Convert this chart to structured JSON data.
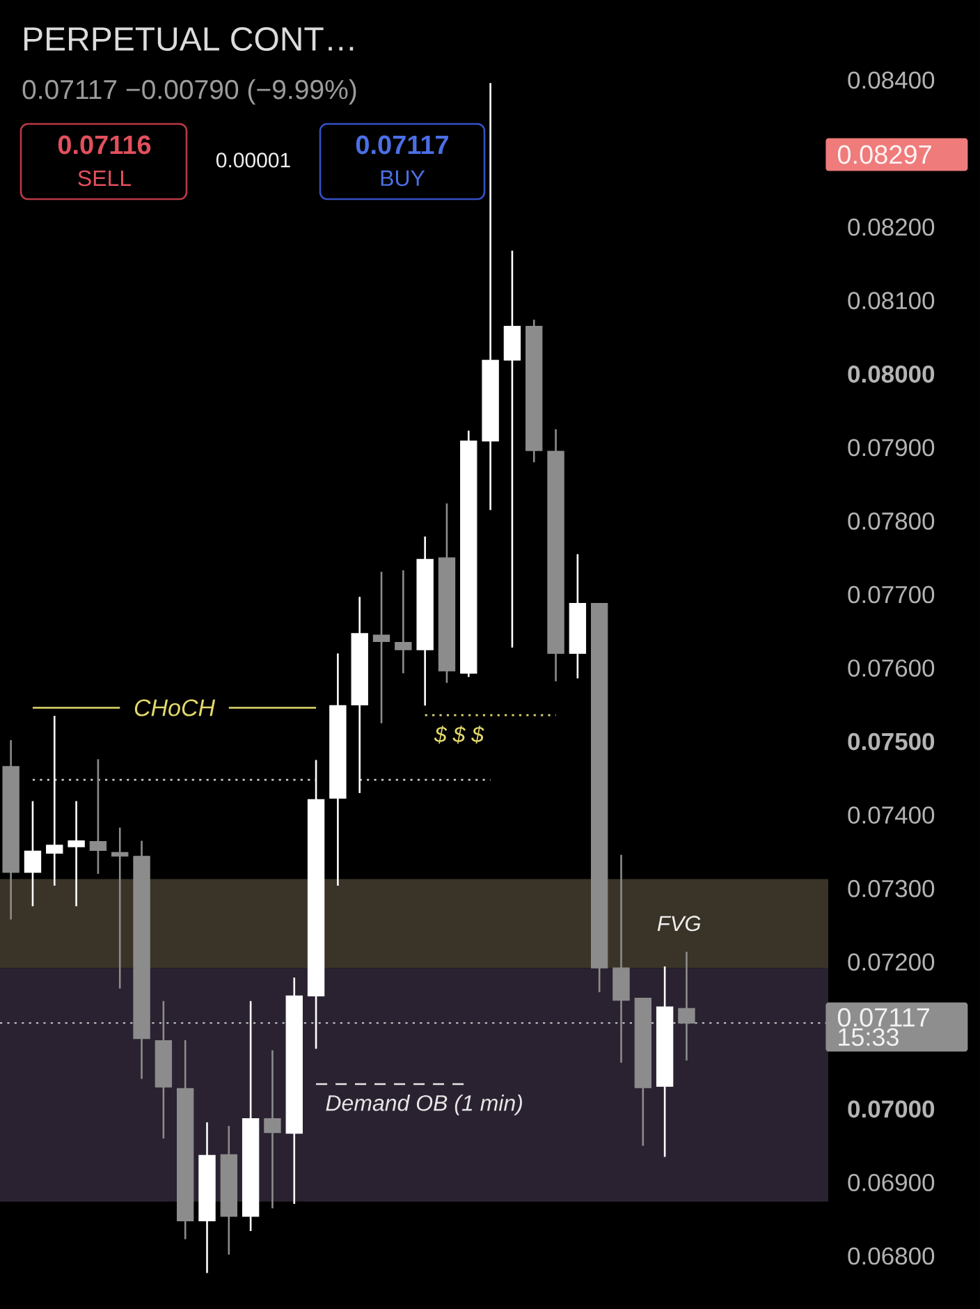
{
  "chart_data": {
    "type": "candlestick",
    "title": "PERPETUAL CONT…",
    "subtitle": "0.07117 −0.00790 (−9.99%)",
    "categories": [
      null,
      null,
      null,
      null,
      null,
      null,
      null,
      null,
      null,
      null,
      null,
      null,
      null,
      null,
      null,
      null,
      null,
      null,
      null,
      null,
      null,
      null,
      null,
      null,
      null,
      null,
      null,
      null,
      null,
      null,
      null,
      null,
      null,
      null,
      null,
      null,
      null,
      null
    ],
    "ohlc": [
      [
        0.07466,
        0.07502,
        0.07258,
        0.07322
      ],
      [
        0.07322,
        0.07419,
        0.07276,
        0.07351
      ],
      [
        0.07348,
        0.07535,
        0.07304,
        0.07359
      ],
      [
        0.07357,
        0.07419,
        0.07276,
        0.07365
      ],
      [
        0.07364,
        0.07476,
        0.0732,
        0.07352
      ],
      [
        0.07349,
        0.07383,
        0.07164,
        0.07344
      ],
      [
        0.07344,
        0.07365,
        0.07041,
        0.07096
      ],
      [
        0.07093,
        0.07147,
        0.0696,
        0.0703
      ],
      [
        0.07028,
        0.07094,
        0.06823,
        0.06848
      ],
      [
        0.06848,
        0.06982,
        0.06777,
        0.06937
      ],
      [
        0.06938,
        0.06977,
        0.06802,
        0.06854
      ],
      [
        0.06854,
        0.07147,
        0.06834,
        0.06987
      ],
      [
        0.06987,
        0.0708,
        0.06865,
        0.06968
      ],
      [
        0.06967,
        0.07179,
        0.06871,
        0.07154
      ],
      [
        0.07154,
        0.07475,
        0.07082,
        0.07421
      ],
      [
        0.07423,
        0.0762,
        0.07304,
        0.07549
      ],
      [
        0.0755,
        0.07697,
        0.0743,
        0.07647
      ],
      [
        0.07645,
        0.07731,
        0.07525,
        0.07636
      ],
      [
        0.07635,
        0.07733,
        0.07593,
        0.07625
      ],
      [
        0.07625,
        0.07779,
        0.07549,
        0.07748
      ],
      [
        0.0775,
        0.07824,
        0.0758,
        0.07596
      ],
      [
        0.07593,
        0.07923,
        0.07588,
        0.07909
      ],
      [
        0.07909,
        0.08396,
        0.07815,
        0.08019
      ],
      [
        0.08019,
        0.08168,
        0.07628,
        0.08065
      ],
      [
        0.08065,
        0.08074,
        0.0788,
        0.07896
      ],
      [
        0.07895,
        0.07925,
        0.07582,
        0.0762
      ],
      [
        0.0762,
        0.07755,
        0.07586,
        0.07688
      ],
      [
        0.07688,
        0.07688,
        0.07159,
        0.07192
      ],
      [
        0.07192,
        0.07346,
        0.07063,
        0.07148
      ],
      [
        0.07151,
        0.07151,
        0.0695,
        0.07029
      ],
      [
        0.07031,
        0.07194,
        0.06935,
        0.07139
      ],
      [
        0.07137,
        0.07214,
        0.07066,
        0.07117
      ],
      null,
      null,
      null,
      null,
      null,
      null
    ],
    "colors": [
      "#8c8c8c",
      "#ffffff",
      "#ffffff",
      "#ffffff",
      "#8c8c8c",
      "#8c8c8c",
      "#8c8c8c",
      "#8c8c8c",
      "#8c8c8c",
      "#ffffff",
      "#8c8c8c",
      "#ffffff",
      "#8c8c8c",
      "#ffffff",
      "#ffffff",
      "#ffffff",
      "#ffffff",
      "#8c8c8c",
      "#8c8c8c",
      "#ffffff",
      "#8c8c8c",
      "#ffffff",
      "#ffffff",
      "#ffffff",
      "#8c8c8c",
      "#8c8c8c",
      "#ffffff",
      "#8c8c8c",
      "#8c8c8c",
      "#8c8c8c",
      "#ffffff",
      "#8c8c8c",
      null,
      null,
      null,
      null,
      null,
      null
    ],
    "ylim": [
      0.06728,
      0.08509
    ],
    "yticks": [
      {
        "value": 0.068,
        "label": "0.06800"
      },
      {
        "value": 0.069,
        "label": "0.06900"
      },
      {
        "value": 0.07,
        "label": "0.07000"
      },
      {
        "value": 0.072,
        "label": "0.07200"
      },
      {
        "value": 0.073,
        "label": "0.07300"
      },
      {
        "value": 0.074,
        "label": "0.07400"
      },
      {
        "value": 0.075,
        "label": "0.07500"
      },
      {
        "value": 0.076,
        "label": "0.07600"
      },
      {
        "value": 0.077,
        "label": "0.07700"
      },
      {
        "value": 0.078,
        "label": "0.07800"
      },
      {
        "value": 0.079,
        "label": "0.07900"
      },
      {
        "value": 0.08,
        "label": "0.08000"
      },
      {
        "value": 0.081,
        "label": "0.08100"
      },
      {
        "value": 0.082,
        "label": "0.08200"
      },
      {
        "value": 0.084,
        "label": "0.08400"
      }
    ],
    "tick_labels": "y",
    "series": [
      {
        "type": "line",
        "name": "CHoCH",
        "color": "#e3d96b",
        "line_style": "solid",
        "values": [
          null,
          0.07546,
          0.07546,
          0.07546,
          0.07546,
          0.07546,
          null,
          null,
          null,
          null,
          0.07546,
          0.07546,
          0.07546,
          0.07546,
          0.07546,
          null,
          null,
          null,
          null,
          null,
          null,
          null,
          null,
          null,
          null,
          null,
          null,
          null,
          null,
          null,
          null,
          null,
          null,
          null,
          null,
          null,
          null,
          null
        ]
      },
      {
        "type": "line",
        "color": "#d6d6d6",
        "line_style": "dotted",
        "values": [
          null,
          0.07448,
          0.07448,
          0.07448,
          0.07448,
          0.07448,
          0.07448,
          0.07448,
          0.07448,
          0.07448,
          0.07448,
          0.07448,
          0.07448,
          0.07448,
          0.07448,
          null,
          0.07448,
          0.07448,
          0.07448,
          0.07448,
          0.07448,
          0.07448,
          0.07448,
          null,
          null,
          null,
          null,
          null,
          null,
          null,
          null,
          null,
          null,
          null,
          null,
          null,
          null,
          null
        ]
      },
      {
        "type": "line",
        "name": "$ $ $",
        "color": "#e3d96b",
        "line_style": "dotted",
        "values": [
          null,
          null,
          null,
          null,
          null,
          null,
          null,
          null,
          null,
          null,
          null,
          null,
          null,
          null,
          null,
          null,
          null,
          null,
          null,
          0.07536,
          0.07536,
          0.07536,
          0.07536,
          0.07536,
          0.07536,
          0.07536,
          null,
          null,
          null,
          null,
          null,
          null,
          null,
          null,
          null,
          null,
          null,
          null
        ]
      },
      {
        "type": "line",
        "name": "Demand OB (1 min)",
        "color": "#e6e6e6",
        "line_style": "dashed",
        "values": [
          null,
          null,
          null,
          null,
          null,
          null,
          null,
          null,
          null,
          null,
          null,
          null,
          null,
          null,
          0.07034,
          0.07034,
          0.07034,
          0.07034,
          0.07034,
          0.07034,
          0.07034,
          0.07034,
          null,
          null,
          null,
          null,
          null,
          null,
          null,
          null,
          null,
          null,
          null,
          null,
          null,
          null,
          null,
          null
        ]
      }
    ],
    "bands": [
      {
        "axis": "y",
        "from": 0.07192,
        "to": 0.07313,
        "label": "FVG",
        "color": "#3a3428"
      },
      {
        "axis": "y",
        "from": 0.06874,
        "to": 0.07192,
        "color": "#2a2231"
      }
    ],
    "ref_lines": [
      {
        "axis": "y",
        "value": 0.07117,
        "label": "0.07117 15:33",
        "line_style": "dotted",
        "color": "#cfcfcf"
      }
    ],
    "annotations": [
      "0.07116",
      "SELL",
      "0.00001",
      "0.07117",
      "BUY",
      "0.08297"
    ]
  }
}
